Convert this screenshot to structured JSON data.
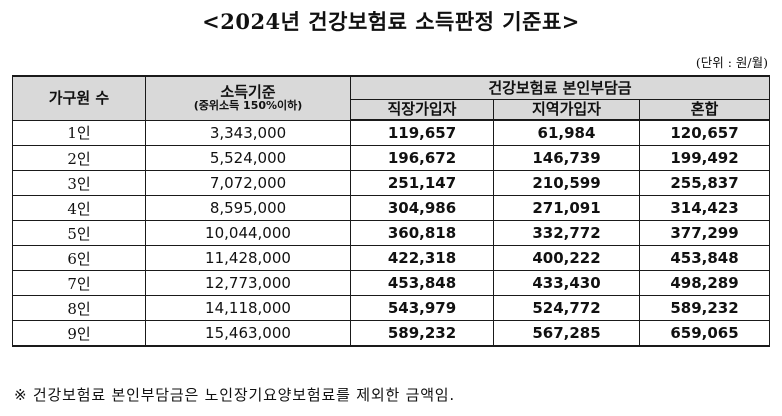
{
  "title": "<2024년 건강보험료 소득판정 기준표>",
  "unit": "(단위 : 원/월)",
  "table": {
    "headers": {
      "household": "가구원 수",
      "income_main": "소득기준",
      "income_sub": "(중위소득 150%이하)",
      "premium_group": "건강보험료 본인부담금",
      "employee": "직장가입자",
      "regional": "지역가입자",
      "mixed": "혼합"
    },
    "rows": [
      {
        "household": "1인",
        "income": "3,343,000",
        "employee": "119,657",
        "regional": "61,984",
        "mixed": "120,657"
      },
      {
        "household": "2인",
        "income": "5,524,000",
        "employee": "196,672",
        "regional": "146,739",
        "mixed": "199,492"
      },
      {
        "household": "3인",
        "income": "7,072,000",
        "employee": "251,147",
        "regional": "210,599",
        "mixed": "255,837"
      },
      {
        "household": "4인",
        "income": "8,595,000",
        "employee": "304,986",
        "regional": "271,091",
        "mixed": "314,423"
      },
      {
        "household": "5인",
        "income": "10,044,000",
        "employee": "360,818",
        "regional": "332,772",
        "mixed": "377,299"
      },
      {
        "household": "6인",
        "income": "11,428,000",
        "employee": "422,318",
        "regional": "400,222",
        "mixed": "453,848"
      },
      {
        "household": "7인",
        "income": "12,773,000",
        "employee": "453,848",
        "regional": "433,430",
        "mixed": "498,289"
      },
      {
        "household": "8인",
        "income": "14,118,000",
        "employee": "543,979",
        "regional": "524,772",
        "mixed": "589,232"
      },
      {
        "household": "9인",
        "income": "15,463,000",
        "employee": "589,232",
        "regional": "567,285",
        "mixed": "659,065"
      }
    ]
  },
  "footnote": "※ 건강보험료 본인부담금은 노인장기요양보험료를 제외한 금액임.",
  "colors": {
    "header_bg": "#d9d9d9",
    "border": "#1a1a1a",
    "text": "#111111"
  }
}
